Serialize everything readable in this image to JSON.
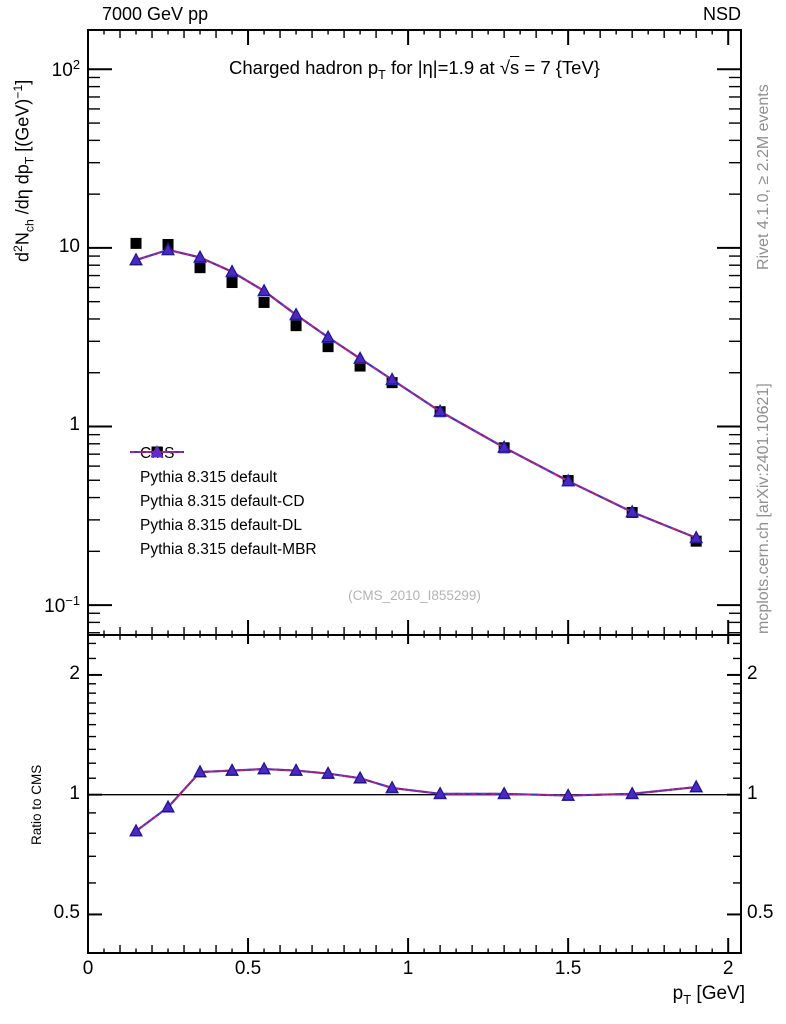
{
  "header": {
    "left": "7000 GeV pp",
    "right": "NSD"
  },
  "title_segments": [
    {
      "t": "Charged hadron p"
    },
    {
      "t": "T",
      "m": "sub"
    },
    {
      "t": " for |η|=1.9 at "
    },
    {
      "t": "√"
    },
    {
      "t": "s",
      "m": "overline"
    },
    {
      "t": " = 7 {TeV}"
    }
  ],
  "labels": {
    "y_main_segments": [
      {
        "t": "d"
      },
      {
        "t": "2",
        "m": "sup"
      },
      {
        "t": "N"
      },
      {
        "t": "ch",
        "m": "sub"
      },
      {
        "t": " /dη  dp"
      },
      {
        "t": "T",
        "m": "sub"
      },
      {
        "t": " [(GeV)"
      },
      {
        "t": "−1",
        "m": "sup"
      },
      {
        "t": "]"
      }
    ],
    "x_segments": [
      {
        "t": "p"
      },
      {
        "t": "T",
        "m": "sub"
      },
      {
        "t": " [GeV]"
      }
    ],
    "ratio": "Ratio to CMS"
  },
  "side_notes": {
    "top": "Rivet 4.1.0, ≥ 2.2M events",
    "bottom": "mcplots.cern.ch [arXiv:2401.10621]"
  },
  "watermark": "(CMS_2010_I855299)",
  "legend": {
    "entries": [
      {
        "label": "CMS",
        "marker": "square",
        "line": "none",
        "color": "#000000"
      },
      {
        "label": "Pythia 8.315 default",
        "marker": "triangle",
        "line": "solid",
        "color": "#3434cf"
      },
      {
        "label": "Pythia 8.315 default-CD",
        "marker": "triangle",
        "line": "dashdot",
        "color": "#b01547"
      },
      {
        "label": "Pythia 8.315 default-DL",
        "marker": "triangle",
        "line": "dashed",
        "color": "#c7266f"
      },
      {
        "label": "Pythia 8.315 default-MBR",
        "marker": "triangle",
        "line": "dotted",
        "color": "#5f2bd0"
      }
    ]
  },
  "axes": {
    "x_ticks": [
      {
        "v": 0,
        "label": "0"
      },
      {
        "v": 0.5,
        "label": "0.5"
      },
      {
        "v": 1,
        "label": "1"
      },
      {
        "v": 1.5,
        "label": "1.5"
      },
      {
        "v": 2,
        "label": "2"
      }
    ],
    "y_ticks_main": [
      {
        "v": 100,
        "segs": [
          {
            "t": "10"
          },
          {
            "t": "2",
            "m": "sup"
          }
        ]
      },
      {
        "v": 10,
        "segs": [
          {
            "t": "10"
          }
        ]
      },
      {
        "v": 1,
        "segs": [
          {
            "t": "1"
          }
        ]
      },
      {
        "v": 0.1,
        "segs": [
          {
            "t": "10"
          },
          {
            "t": "−1",
            "m": "sup"
          }
        ]
      }
    ],
    "y_ticks_ratio": [
      {
        "v": 2,
        "label": "2"
      },
      {
        "v": 1,
        "label": "1"
      },
      {
        "v": 0.5,
        "label": "0.5"
      }
    ]
  },
  "colors": {
    "frame": "#000000",
    "cms": "#000000",
    "pythia_default": "#3434cf",
    "pythia_cd": "#b01547",
    "pythia_dl": "#c7266f",
    "pythia_mbr": "#5f2bd0",
    "plot_triangle_fill": "#4a28c4",
    "plot_triangle_edge": "#1d0e6b",
    "side_text": "#8f8f8f",
    "watermark": "#b3b3b3"
  },
  "chart_data": {
    "type": "line",
    "title": "Charged hadron pT for |eta|=1.9 at sqrt(s) = 7 TeV",
    "xlabel": "pT [GeV]",
    "ylabel": "d2N_ch/deta dpT [(GeV)^-1]",
    "yscale": "log",
    "xlim": [
      0,
      2.04
    ],
    "ylim_main": [
      0.068,
      166
    ],
    "ylim_ratio": [
      0.4,
      2.52
    ],
    "legend_position": "middle-left",
    "grid": false,
    "x": [
      0.15,
      0.25,
      0.35,
      0.45,
      0.55,
      0.65,
      0.75,
      0.85,
      0.95,
      1.1,
      1.3,
      1.5,
      1.7,
      1.9
    ],
    "series": [
      {
        "name": "CMS",
        "kind": "data",
        "marker": "square",
        "color": "#000000",
        "values": [
          10.6,
          10.45,
          7.75,
          6.4,
          4.95,
          3.67,
          2.8,
          2.18,
          1.76,
          1.21,
          0.76,
          0.498,
          0.33,
          0.228
        ]
      },
      {
        "name": "Pythia 8.315 default",
        "kind": "mc",
        "line": "solid",
        "color": "#3434cf",
        "values": [
          8.55,
          9.75,
          8.85,
          7.35,
          5.74,
          4.22,
          3.16,
          2.4,
          1.83,
          1.215,
          0.763,
          0.495,
          0.332,
          0.238
        ]
      },
      {
        "name": "Pythia 8.315 default-CD",
        "kind": "mc",
        "line": "dashdot",
        "color": "#b01547",
        "values": [
          8.55,
          9.75,
          8.85,
          7.35,
          5.74,
          4.22,
          3.16,
          2.4,
          1.83,
          1.215,
          0.763,
          0.495,
          0.332,
          0.238
        ]
      },
      {
        "name": "Pythia 8.315 default-DL",
        "kind": "mc",
        "line": "dashed",
        "color": "#c7266f",
        "values": [
          8.55,
          9.75,
          8.85,
          7.35,
          5.74,
          4.22,
          3.16,
          2.4,
          1.83,
          1.215,
          0.763,
          0.495,
          0.332,
          0.238
        ]
      },
      {
        "name": "Pythia 8.315 default-MBR",
        "kind": "mc",
        "line": "dotted",
        "color": "#5f2bd0",
        "values": [
          8.55,
          9.75,
          8.85,
          7.35,
          5.74,
          4.22,
          3.16,
          2.4,
          1.83,
          1.215,
          0.763,
          0.495,
          0.332,
          0.238
        ]
      }
    ],
    "ratio": {
      "label": "Ratio to CMS",
      "reference": "CMS",
      "values": [
        0.81,
        0.93,
        1.14,
        1.15,
        1.16,
        1.15,
        1.13,
        1.1,
        1.04,
        1.005,
        1.005,
        0.995,
        1.005,
        1.045
      ]
    }
  }
}
